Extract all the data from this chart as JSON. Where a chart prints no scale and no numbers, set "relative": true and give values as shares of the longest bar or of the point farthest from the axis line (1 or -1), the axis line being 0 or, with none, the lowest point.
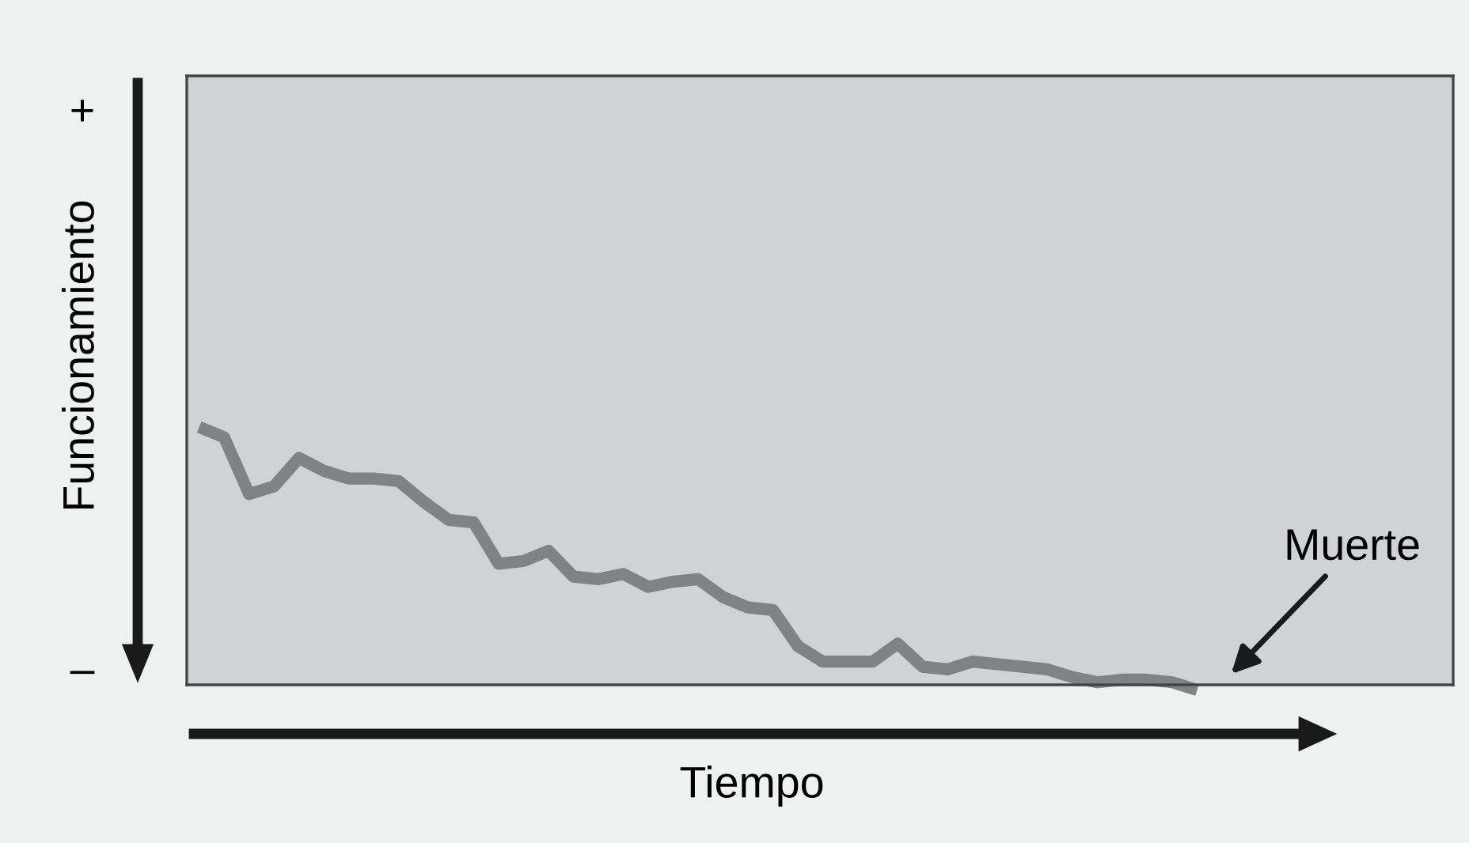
{
  "chart_data": {
    "type": "line",
    "relative": true,
    "xlabel": "Tiempo",
    "ylabel": "Funcionamiento",
    "annotations": [
      "+",
      "–",
      "Muerte"
    ],
    "categories": [
      null,
      null,
      null,
      null,
      null,
      null,
      null,
      null,
      null,
      null,
      null,
      null,
      null,
      null,
      null,
      null,
      null,
      null,
      null,
      null,
      null,
      null,
      null,
      null,
      null,
      null,
      null,
      null,
      null,
      null,
      null,
      null,
      null,
      null,
      null,
      null,
      null,
      null,
      null,
      null,
      null
    ],
    "series": [
      {
        "color": "#808285",
        "values": [
          1.0,
          0.96,
          0.74,
          0.77,
          0.88,
          0.83,
          0.8,
          0.8,
          0.79,
          0.71,
          0.64,
          0.63,
          0.47,
          0.48,
          0.52,
          0.42,
          0.41,
          0.43,
          0.38,
          0.4,
          0.41,
          0.34,
          0.3,
          0.29,
          0.15,
          0.09,
          0.09,
          0.09,
          0.16,
          0.07,
          0.06,
          0.09,
          0.08,
          0.07,
          0.06,
          0.03,
          0.01,
          0.02,
          0.02,
          0.01,
          -0.02
        ]
      }
    ],
    "grid": false,
    "marker": "none",
    "line_style": "solid"
  }
}
